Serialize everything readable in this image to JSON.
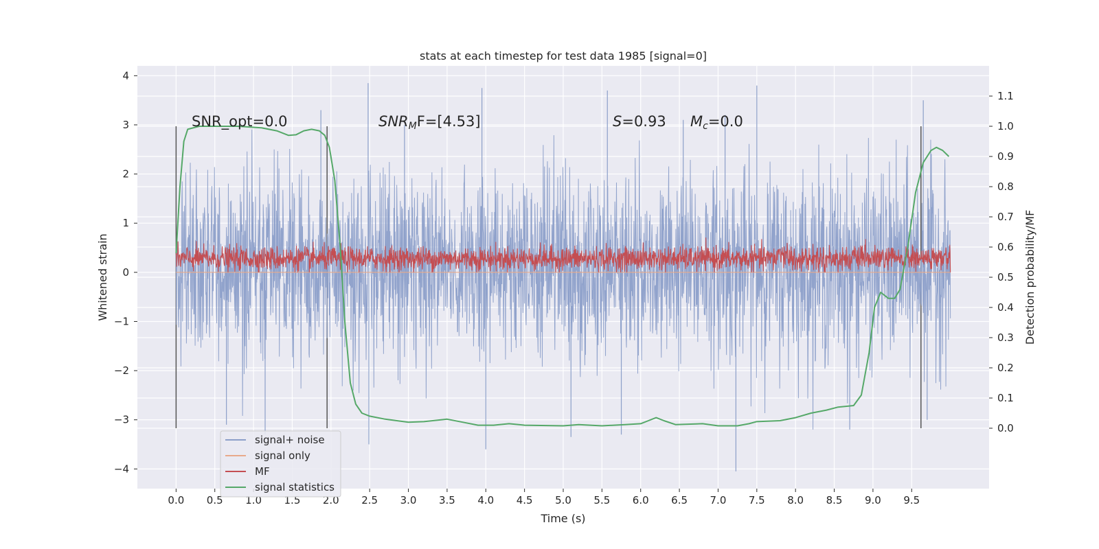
{
  "chart_data": {
    "type": "line",
    "title": "stats at each timestep for test data 1985 [signal=0]",
    "xlabel": "Time (s)",
    "ylabel_left": "Whitened strain",
    "ylabel_right": "Detection probability/MF",
    "xlim": [
      -0.5,
      10.5
    ],
    "ylim_left": [
      -4.4,
      4.2
    ],
    "ylim_right": [
      -0.2,
      1.2
    ],
    "x_ticks": [
      0.0,
      0.5,
      1.0,
      1.5,
      2.0,
      2.5,
      3.0,
      3.5,
      4.0,
      4.5,
      5.0,
      5.5,
      6.0,
      6.5,
      7.0,
      7.5,
      8.0,
      8.5,
      9.0,
      9.5
    ],
    "x_tick_labels": [
      "0.0",
      "0.5",
      "1.0",
      "1.5",
      "2.0",
      "2.5",
      "3.0",
      "3.5",
      "4.0",
      "4.5",
      "5.0",
      "5.5",
      "6.0",
      "6.5",
      "7.0",
      "7.5",
      "8.0",
      "8.5",
      "9.0",
      "9.5"
    ],
    "y_left_ticks": [
      -4,
      -3,
      -2,
      -1,
      0,
      1,
      2,
      3,
      4
    ],
    "y_left_tick_labels": [
      "−4",
      "−3",
      "−2",
      "−1",
      "0",
      "1",
      "2",
      "3",
      "4"
    ],
    "y_right_ticks": [
      0.0,
      0.1,
      0.2,
      0.3,
      0.4,
      0.5,
      0.6,
      0.7,
      0.8,
      0.9,
      1.0,
      1.1
    ],
    "y_right_tick_labels": [
      "0.0",
      "0.1",
      "0.2",
      "0.3",
      "0.4",
      "0.5",
      "0.6",
      "0.7",
      "0.8",
      "0.9",
      "1.0",
      "1.1"
    ],
    "grid": true,
    "legend_position": "lower-left",
    "series": [
      {
        "name": "signal+ noise",
        "color": "#8c9fc9",
        "axis": "left",
        "x_range": [
          0.0,
          10.0
        ],
        "description_range": [
          -4.05,
          3.85
        ],
        "spikes": [
          {
            "x": 2.48,
            "y": 3.85
          },
          {
            "x": 2.49,
            "y": -3.5
          },
          {
            "x": 3.95,
            "y": 3.75
          },
          {
            "x": 4.0,
            "y": -3.6
          },
          {
            "x": 5.57,
            "y": 3.7
          },
          {
            "x": 7.23,
            "y": -4.05
          },
          {
            "x": 7.5,
            "y": 3.8
          },
          {
            "x": 7.09,
            "y": 3.2
          },
          {
            "x": 1.87,
            "y": 3.3
          },
          {
            "x": 9.65,
            "y": 3.5
          },
          {
            "x": 0.65,
            "y": -3.1
          },
          {
            "x": 1.15,
            "y": -3.3
          },
          {
            "x": 5.1,
            "y": -3.35
          },
          {
            "x": 5.75,
            "y": -3.3
          },
          {
            "x": 8.7,
            "y": -3.2
          },
          {
            "x": 9.7,
            "y": -3.0
          },
          {
            "x": 2.95,
            "y": 3.0
          },
          {
            "x": 6.55,
            "y": 3.1
          }
        ]
      },
      {
        "name": "signal only",
        "color": "#e8a98a",
        "axis": "left",
        "points": [
          [
            0.0,
            0.0
          ],
          [
            10.0,
            0.0
          ]
        ]
      },
      {
        "name": "MF",
        "color": "#c44e52",
        "axis": "left",
        "x_range": [
          0.0,
          10.0
        ],
        "description_range": [
          0.0,
          0.95
        ]
      },
      {
        "name": "signal statistics",
        "color": "#55a868",
        "axis": "right",
        "points": [
          [
            0.0,
            0.58
          ],
          [
            0.05,
            0.8
          ],
          [
            0.1,
            0.95
          ],
          [
            0.15,
            0.99
          ],
          [
            0.3,
            1.0
          ],
          [
            0.8,
            1.0
          ],
          [
            1.1,
            0.995
          ],
          [
            1.3,
            0.985
          ],
          [
            1.45,
            0.97
          ],
          [
            1.55,
            0.972
          ],
          [
            1.65,
            0.985
          ],
          [
            1.75,
            0.99
          ],
          [
            1.85,
            0.985
          ],
          [
            1.92,
            0.97
          ],
          [
            1.98,
            0.93
          ],
          [
            2.05,
            0.82
          ],
          [
            2.12,
            0.6
          ],
          [
            2.18,
            0.35
          ],
          [
            2.25,
            0.15
          ],
          [
            2.32,
            0.08
          ],
          [
            2.4,
            0.05
          ],
          [
            2.5,
            0.04
          ],
          [
            2.7,
            0.03
          ],
          [
            3.0,
            0.02
          ],
          [
            3.2,
            0.022
          ],
          [
            3.5,
            0.03
          ],
          [
            3.7,
            0.02
          ],
          [
            3.9,
            0.01
          ],
          [
            4.1,
            0.01
          ],
          [
            4.3,
            0.015
          ],
          [
            4.5,
            0.01
          ],
          [
            5.0,
            0.008
          ],
          [
            5.2,
            0.012
          ],
          [
            5.5,
            0.008
          ],
          [
            5.8,
            0.012
          ],
          [
            6.0,
            0.015
          ],
          [
            6.1,
            0.025
          ],
          [
            6.2,
            0.035
          ],
          [
            6.3,
            0.025
          ],
          [
            6.45,
            0.012
          ],
          [
            6.8,
            0.015
          ],
          [
            7.0,
            0.008
          ],
          [
            7.25,
            0.008
          ],
          [
            7.4,
            0.015
          ],
          [
            7.5,
            0.022
          ],
          [
            7.8,
            0.025
          ],
          [
            8.0,
            0.035
          ],
          [
            8.2,
            0.05
          ],
          [
            8.4,
            0.06
          ],
          [
            8.55,
            0.07
          ],
          [
            8.75,
            0.075
          ],
          [
            8.85,
            0.11
          ],
          [
            8.95,
            0.25
          ],
          [
            9.02,
            0.4
          ],
          [
            9.1,
            0.45
          ],
          [
            9.2,
            0.43
          ],
          [
            9.28,
            0.43
          ],
          [
            9.35,
            0.46
          ],
          [
            9.45,
            0.6
          ],
          [
            9.55,
            0.78
          ],
          [
            9.65,
            0.88
          ],
          [
            9.75,
            0.92
          ],
          [
            9.82,
            0.93
          ],
          [
            9.9,
            0.92
          ],
          [
            9.98,
            0.9
          ]
        ]
      }
    ],
    "vertical_markers": [
      0.0,
      1.95,
      9.62
    ],
    "vertical_marker_range": [
      0.0,
      1.0
    ],
    "annotations": [
      {
        "name": "snr-opt",
        "text": "SNR_opt=0.0"
      },
      {
        "name": "snr-mf",
        "base": "SNR",
        "sub": "M",
        "tail": "F=[4.53]"
      },
      {
        "name": "s-stat",
        "base": "S",
        "tail": "=0.93"
      },
      {
        "name": "mc",
        "base": "M",
        "sub": "c",
        "tail": "=0.0"
      }
    ]
  }
}
